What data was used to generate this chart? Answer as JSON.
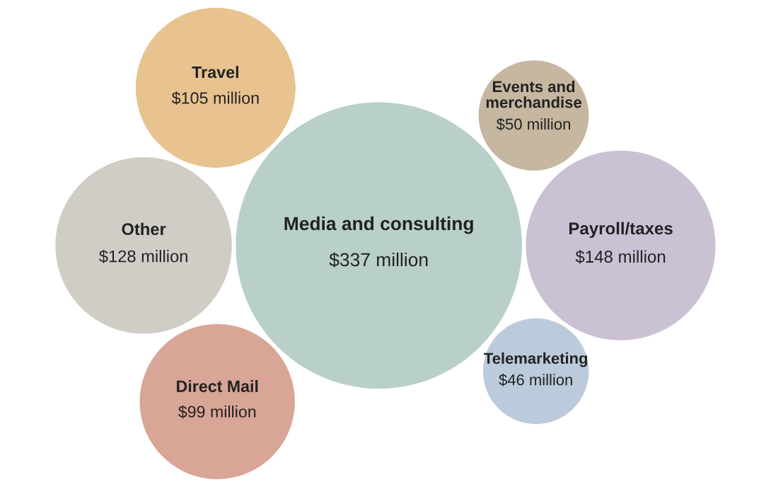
{
  "chart_data": {
    "type": "other",
    "categories": [
      "Events and\nmerchandise",
      "Media and consulting",
      "Telemarketing",
      "Payroll/taxes",
      "Travel",
      "Direct Mail",
      "Other"
    ],
    "values": [
      50,
      337,
      46,
      148,
      105,
      99,
      128
    ],
    "value_labels": [
      "$50 million",
      "$337 million",
      "$46 million",
      "$148 million",
      "$105 million",
      "$99 million",
      "$128 million"
    ],
    "colors": [
      "#c5b7a0",
      "#b8d0c9",
      "#bccbdc",
      "#cac1d4",
      "#e8c390",
      "#d8a596",
      "#cfcdc5"
    ]
  }
}
